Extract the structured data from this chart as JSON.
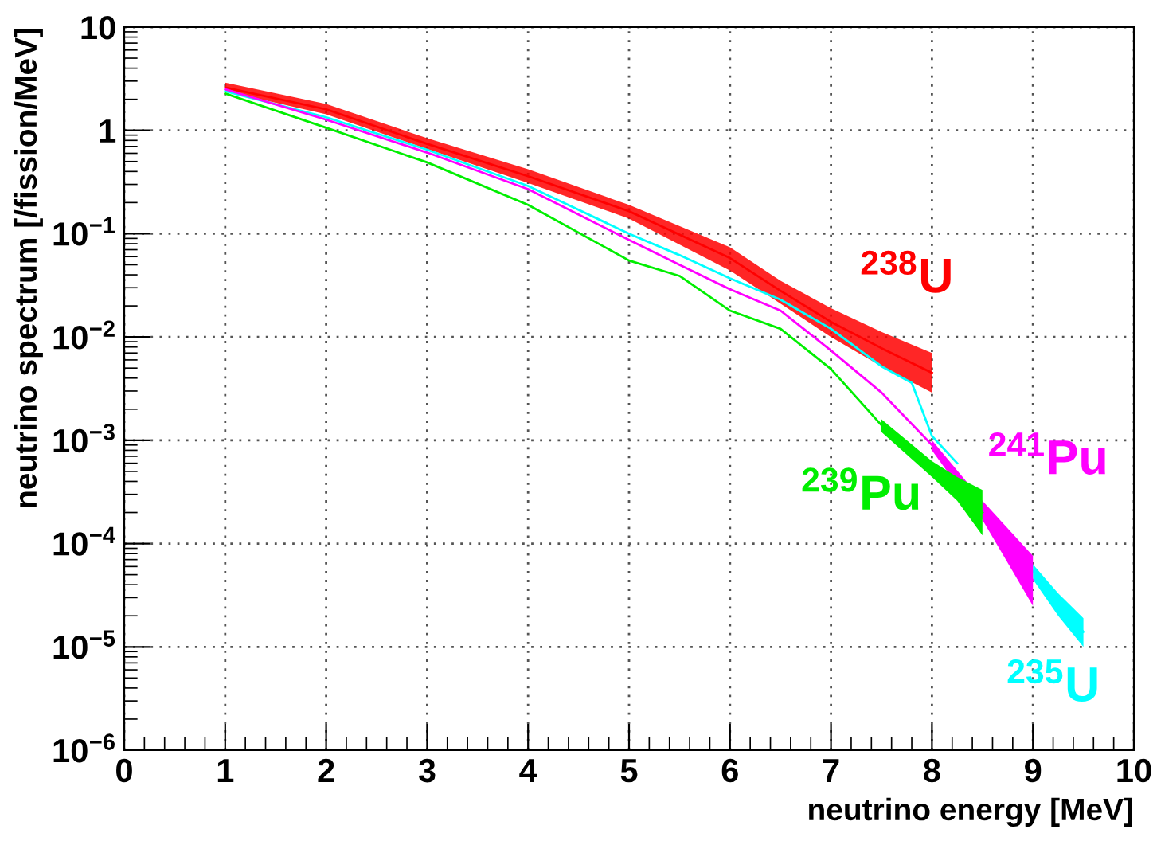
{
  "chart_data": {
    "type": "line",
    "xlabel": "neutrino energy [MeV]",
    "ylabel": "neutrino spectrum [/fission/MeV]",
    "log": "y",
    "grid": true,
    "line_style": "solid",
    "marker": "none",
    "legend": false,
    "xlim": [
      0,
      10
    ],
    "xticks": [
      0,
      1,
      2,
      3,
      4,
      5,
      6,
      7,
      8,
      9,
      10
    ],
    "ylim": [
      1e-06,
      10
    ],
    "yticks": [
      {
        "value": 1e-06,
        "label": "10$^{−6}$"
      },
      {
        "value": 1e-05,
        "label": "10$^{−5}$"
      },
      {
        "value": 0.0001,
        "label": "10$^{−4}$"
      },
      {
        "value": 0.001,
        "label": "10$^{−3}$"
      },
      {
        "value": 0.01,
        "label": "10$^{−2}$"
      },
      {
        "value": 0.1,
        "label": "10$^{−1}$"
      },
      1,
      10
    ],
    "series": [
      {
        "name": "$^{238}$U",
        "color": "#ff0000",
        "x": [
          1,
          2,
          3,
          4,
          5,
          6,
          6.5,
          7,
          7.5,
          8
        ],
        "values": [
          2.6,
          1.6,
          0.74,
          0.36,
          0.165,
          0.058,
          0.028,
          0.014,
          0.0078,
          0.0045
        ],
        "lower": [
          2.4,
          1.43,
          0.66,
          0.31,
          0.14,
          0.044,
          0.021,
          0.01,
          0.0052,
          0.0029
        ],
        "upper": [
          2.9,
          1.8,
          0.84,
          0.42,
          0.19,
          0.074,
          0.035,
          0.019,
          0.0112,
          0.007
        ]
      },
      {
        "name": "$^{235}$U",
        "color": "#00ffff",
        "x": [
          1,
          2,
          3,
          4,
          5,
          5.5,
          6,
          6.5,
          7,
          7.5,
          7.8,
          8,
          8.25,
          8.5,
          9,
          9.25,
          9.5
        ],
        "values": [
          2.4,
          1.34,
          0.65,
          0.29,
          0.1,
          0.062,
          0.037,
          0.023,
          0.012,
          0.0052,
          0.0036,
          0.0011,
          0.0006,
          null,
          5.4e-05,
          2.6e-05,
          1.4e-05
        ],
        "lower": [
          null,
          null,
          null,
          null,
          null,
          null,
          null,
          null,
          null,
          null,
          null,
          null,
          null,
          null,
          4.5e-05,
          2e-05,
          1e-05
        ],
        "upper": [
          null,
          null,
          null,
          null,
          null,
          null,
          null,
          null,
          null,
          null,
          null,
          null,
          null,
          null,
          6.3e-05,
          3.3e-05,
          1.9e-05
        ]
      },
      {
        "name": "$^{241}$Pu",
        "color": "#ff00ff",
        "x": [
          1,
          2,
          3,
          4,
          5,
          5.5,
          6,
          6.5,
          7,
          7.5,
          8,
          8.5,
          9
        ],
        "values": [
          2.5,
          1.27,
          0.61,
          0.27,
          0.087,
          0.05,
          0.029,
          0.018,
          0.0074,
          0.0029,
          0.0009,
          0.00021,
          4.4e-05
        ],
        "lower": [
          null,
          null,
          null,
          null,
          null,
          null,
          null,
          null,
          null,
          null,
          0.0008,
          0.00017,
          2.5e-05
        ],
        "upper": [
          null,
          null,
          null,
          null,
          null,
          null,
          null,
          null,
          null,
          null,
          0.001,
          0.00026,
          7.6e-05
        ]
      },
      {
        "name": "$^{239}$Pu",
        "color": "#00ee00",
        "x": [
          1,
          2,
          3,
          4,
          5,
          5.5,
          6,
          6.5,
          7,
          7.5,
          8,
          8.25,
          8.5
        ],
        "values": [
          2.28,
          1.06,
          0.49,
          0.19,
          0.055,
          0.039,
          0.018,
          0.012,
          0.0049,
          0.0014,
          0.00055,
          0.00034,
          0.0002
        ],
        "lower": [
          null,
          null,
          null,
          null,
          null,
          null,
          null,
          null,
          null,
          0.0012,
          0.00044,
          0.00026,
          0.00012
        ],
        "upper": [
          null,
          null,
          null,
          null,
          null,
          null,
          null,
          null,
          null,
          0.0016,
          0.00063,
          0.00044,
          0.00033
        ]
      }
    ]
  }
}
